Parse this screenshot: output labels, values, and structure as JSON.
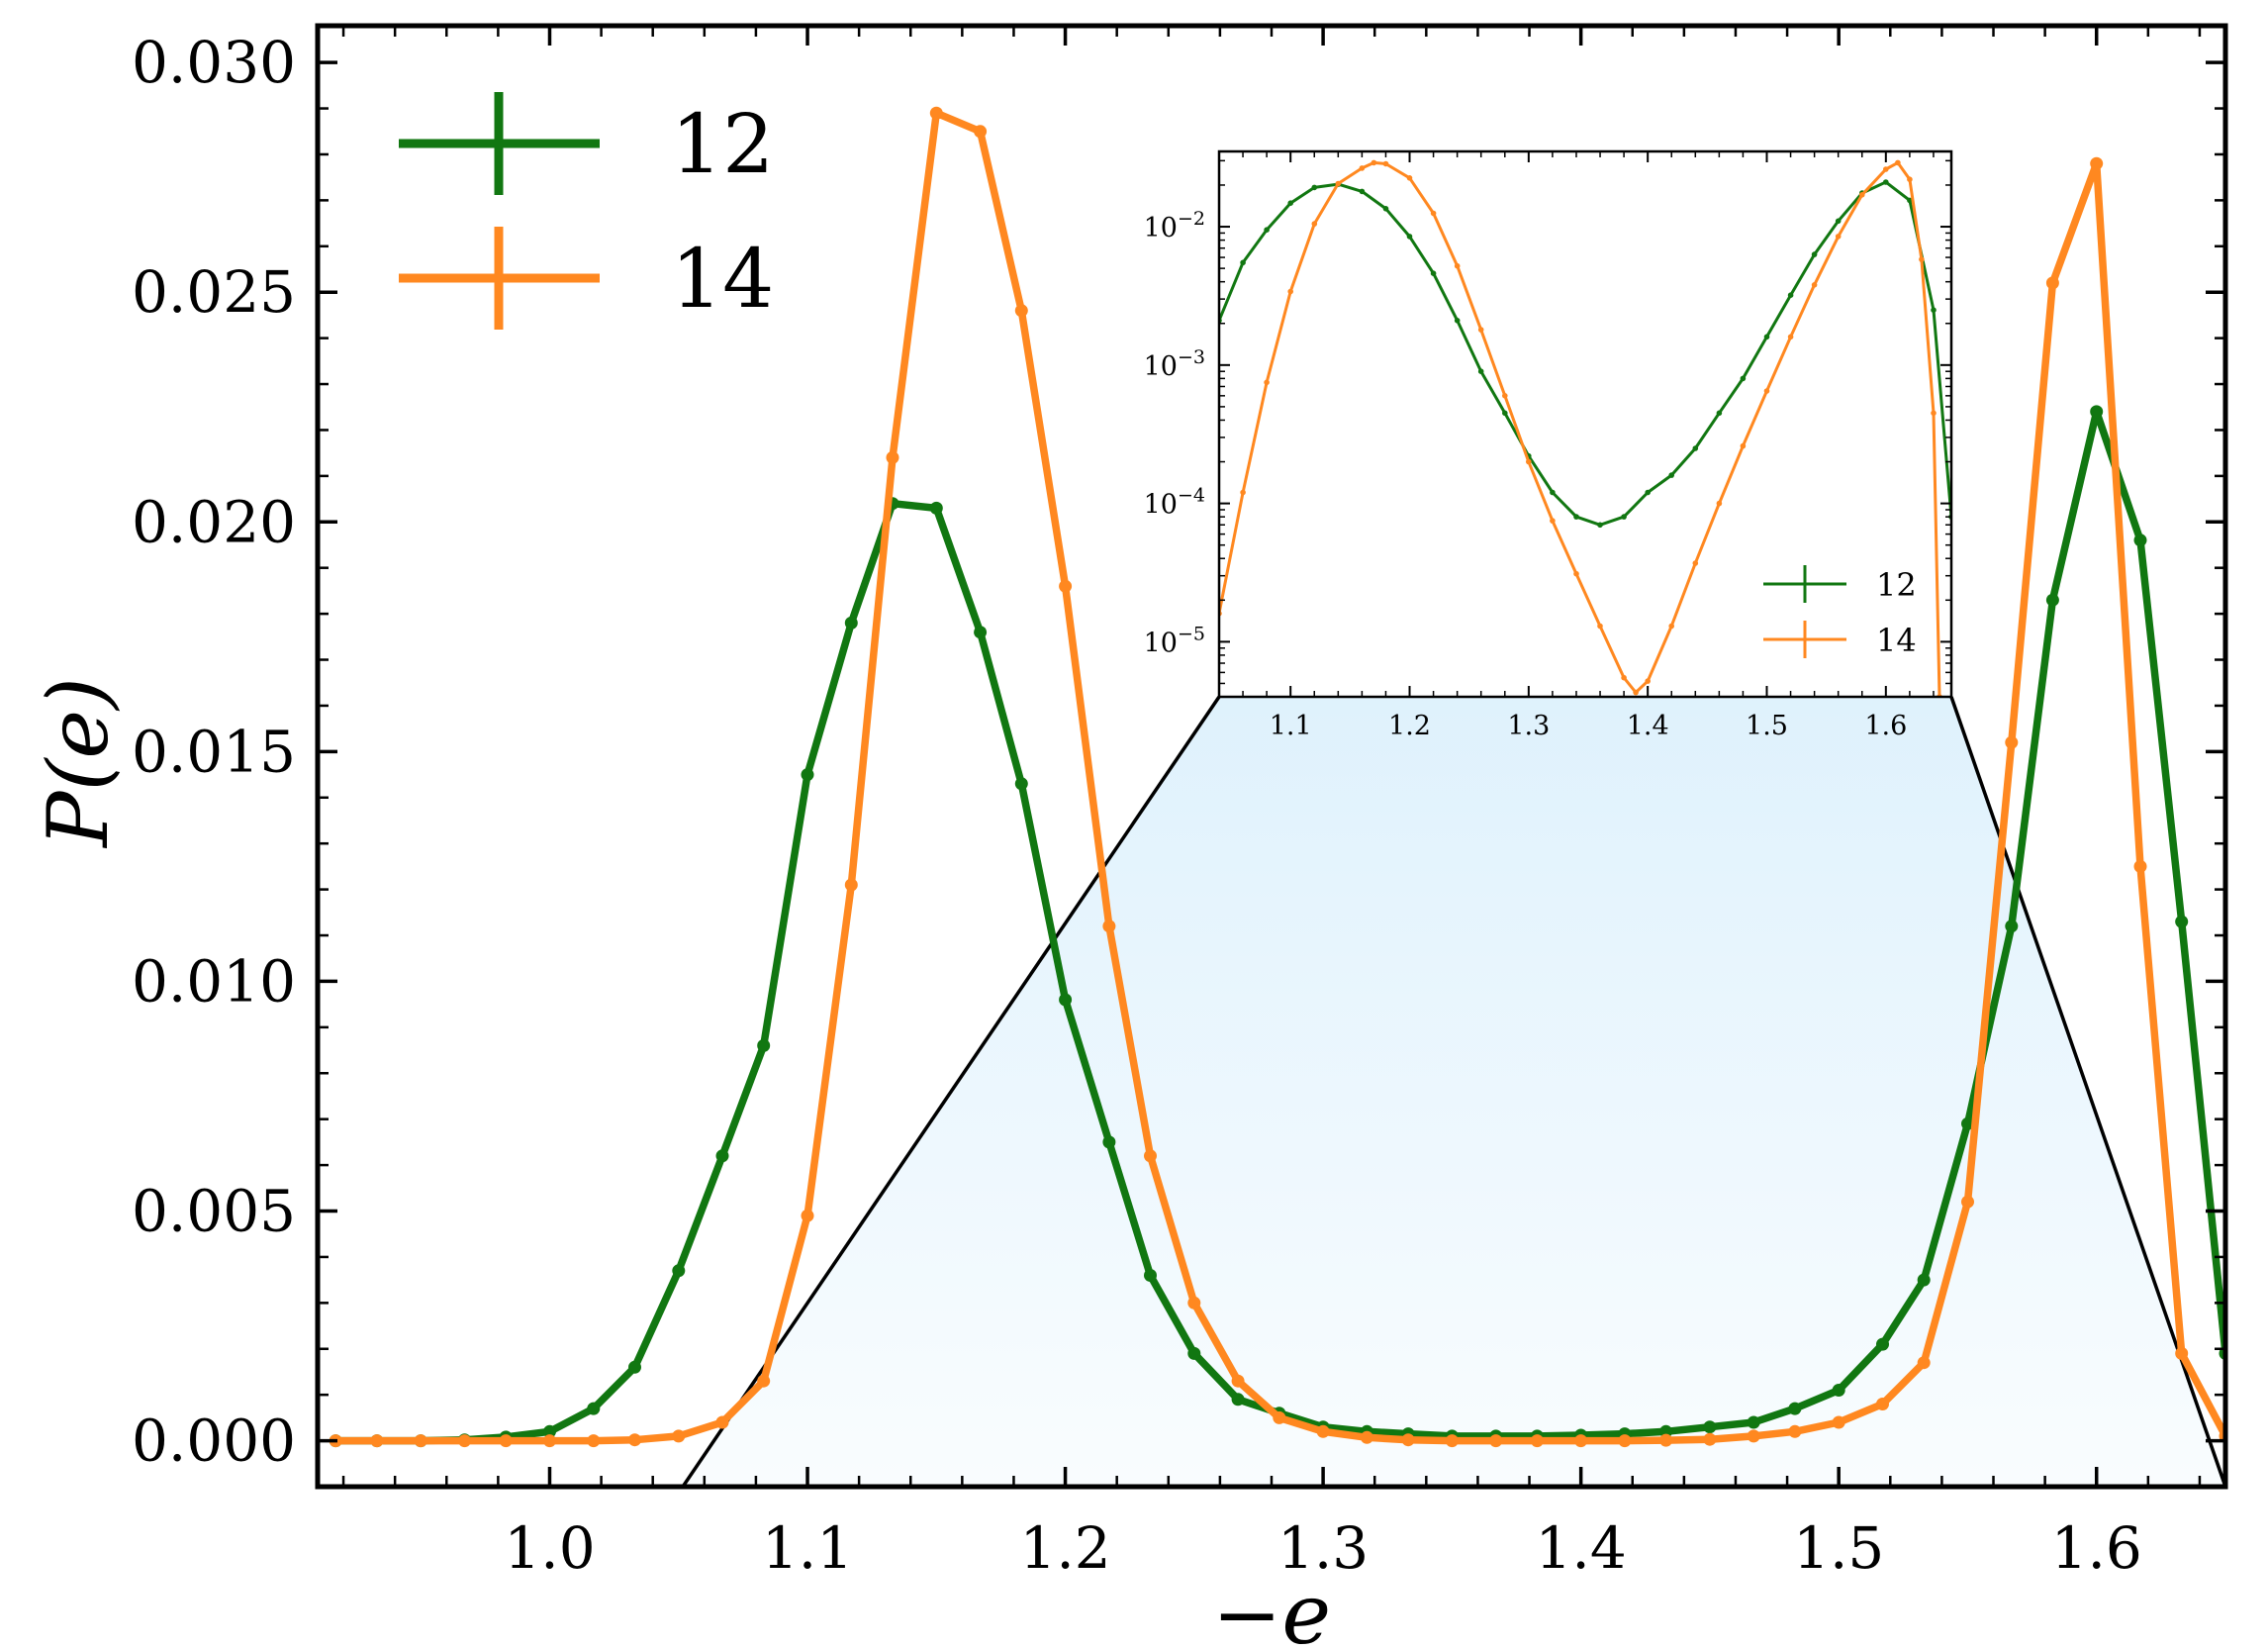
{
  "chart_data": {
    "type": "line",
    "xlabel": "−e",
    "ylabel": "P(e)",
    "xlim": [
      0.91,
      1.65
    ],
    "ylim": [
      -0.001,
      0.0308
    ],
    "x_ticks": [
      1.0,
      1.1,
      1.2,
      1.3,
      1.4,
      1.5,
      1.6
    ],
    "x_tick_labels": [
      "1.0",
      "1.1",
      "1.2",
      "1.3",
      "1.4",
      "1.5",
      "1.6"
    ],
    "y_ticks": [
      0.0,
      0.005,
      0.01,
      0.015,
      0.02,
      0.025,
      0.03
    ],
    "y_tick_labels": [
      "0.000",
      "0.005",
      "0.010",
      "0.015",
      "0.020",
      "0.025",
      "0.030"
    ],
    "legend_position": "top-left",
    "grid": false,
    "colors": {
      "12": "#117711",
      "14": "#ff8820",
      "shade": "#dcf0fb"
    },
    "series": [
      {
        "name": "12",
        "color": "#117711",
        "x": [
          0.917,
          0.933,
          0.95,
          0.967,
          0.983,
          1.0,
          1.017,
          1.033,
          1.05,
          1.067,
          1.083,
          1.1,
          1.117,
          1.133,
          1.15,
          1.167,
          1.183,
          1.2,
          1.217,
          1.233,
          1.25,
          1.267,
          1.283,
          1.3,
          1.317,
          1.333,
          1.35,
          1.367,
          1.383,
          1.4,
          1.417,
          1.433,
          1.45,
          1.467,
          1.483,
          1.5,
          1.517,
          1.533,
          1.55,
          1.567,
          1.583,
          1.6,
          1.617,
          1.633,
          1.65
        ],
        "y": [
          0.0,
          0.0,
          0.0,
          2e-05,
          8e-05,
          0.0002,
          0.0007,
          0.0016,
          0.0037,
          0.0062,
          0.0086,
          0.0145,
          0.0178,
          0.0204,
          0.0203,
          0.0176,
          0.0143,
          0.0096,
          0.0065,
          0.0036,
          0.0019,
          0.0009,
          0.0006,
          0.0003,
          0.0002,
          0.00015,
          0.0001,
          0.0001,
          0.0001,
          0.00012,
          0.00015,
          0.0002,
          0.0003,
          0.0004,
          0.0007,
          0.0011,
          0.0021,
          0.0035,
          0.0069,
          0.0112,
          0.0183,
          0.0224,
          0.0196,
          0.0113,
          0.0019
        ]
      },
      {
        "name": "14",
        "color": "#ff8820",
        "x": [
          0.917,
          0.933,
          0.95,
          0.967,
          0.983,
          1.0,
          1.017,
          1.033,
          1.05,
          1.067,
          1.083,
          1.1,
          1.117,
          1.133,
          1.15,
          1.167,
          1.183,
          1.2,
          1.217,
          1.233,
          1.25,
          1.267,
          1.283,
          1.3,
          1.317,
          1.333,
          1.35,
          1.367,
          1.383,
          1.4,
          1.417,
          1.433,
          1.45,
          1.467,
          1.483,
          1.5,
          1.517,
          1.533,
          1.55,
          1.567,
          1.583,
          1.6,
          1.617,
          1.633,
          1.65
        ],
        "y": [
          0.0,
          0.0,
          0.0,
          0.0,
          0.0,
          0.0,
          0.0,
          2e-05,
          0.0001,
          0.0004,
          0.0013,
          0.0049,
          0.0121,
          0.0214,
          0.0289,
          0.0285,
          0.0246,
          0.0186,
          0.0112,
          0.0062,
          0.003,
          0.0013,
          0.0005,
          0.0002,
          7e-05,
          2e-05,
          0.0,
          0.0,
          0.0,
          0.0,
          0.0,
          1e-05,
          3e-05,
          0.0001,
          0.0002,
          0.0004,
          0.0008,
          0.0017,
          0.0052,
          0.0152,
          0.0252,
          0.0278,
          0.0125,
          0.0019,
          0.0001
        ]
      }
    ],
    "legend": [
      {
        "label": "12",
        "color": "#117711"
      },
      {
        "label": "14",
        "color": "#ff8820"
      }
    ],
    "inset": {
      "type": "line",
      "yscale": "log",
      "xlim": [
        1.04,
        1.655
      ],
      "ylim": [
        4e-06,
        0.035
      ],
      "x_ticks": [
        1.1,
        1.2,
        1.3,
        1.4,
        1.5,
        1.6
      ],
      "x_tick_labels": [
        "1.1",
        "1.2",
        "1.3",
        "1.4",
        "1.5",
        "1.6"
      ],
      "y_ticks": [
        1e-05,
        0.0001,
        0.001,
        0.01
      ],
      "y_tick_labels": [
        {
          "base": "10",
          "exp": "−5"
        },
        {
          "base": "10",
          "exp": "−4"
        },
        {
          "base": "10",
          "exp": "−3"
        },
        {
          "base": "10",
          "exp": "−2"
        }
      ],
      "legend_position": "lower-right",
      "legend": [
        {
          "label": "12",
          "color": "#117711"
        },
        {
          "label": "14",
          "color": "#ff8820"
        }
      ],
      "series": [
        {
          "name": "12",
          "color": "#117711",
          "x": [
            1.04,
            1.06,
            1.08,
            1.1,
            1.12,
            1.14,
            1.16,
            1.18,
            1.2,
            1.22,
            1.24,
            1.26,
            1.28,
            1.3,
            1.32,
            1.34,
            1.36,
            1.38,
            1.4,
            1.42,
            1.44,
            1.46,
            1.48,
            1.5,
            1.52,
            1.54,
            1.56,
            1.58,
            1.6,
            1.62,
            1.64,
            1.655
          ],
          "y": [
            0.0021,
            0.0055,
            0.0095,
            0.0148,
            0.0192,
            0.0203,
            0.018,
            0.0135,
            0.0085,
            0.0046,
            0.0021,
            0.0009,
            0.00045,
            0.00022,
            0.00012,
            8e-05,
            7e-05,
            8e-05,
            0.00012,
            0.00016,
            0.00025,
            0.00045,
            0.0008,
            0.0016,
            0.0032,
            0.0063,
            0.011,
            0.0175,
            0.021,
            0.0155,
            0.0025,
            8e-05
          ]
        },
        {
          "name": "14",
          "color": "#ff8820",
          "x": [
            1.04,
            1.06,
            1.08,
            1.1,
            1.12,
            1.14,
            1.16,
            1.17,
            1.18,
            1.2,
            1.22,
            1.24,
            1.26,
            1.28,
            1.3,
            1.32,
            1.34,
            1.36,
            1.38,
            1.39,
            1.4,
            1.42,
            1.44,
            1.46,
            1.48,
            1.5,
            1.52,
            1.54,
            1.56,
            1.58,
            1.6,
            1.61,
            1.62,
            1.63,
            1.64,
            1.645
          ],
          "y": [
            1.6e-05,
            0.00012,
            0.00075,
            0.0034,
            0.0105,
            0.0205,
            0.0265,
            0.029,
            0.0285,
            0.0225,
            0.0125,
            0.0052,
            0.0018,
            0.0006,
            0.0002,
            7.5e-05,
            3.1e-05,
            1.3e-05,
            5.5e-06,
            4.3e-06,
            5.2e-06,
            1.3e-05,
            3.7e-05,
            0.0001,
            0.00026,
            0.00065,
            0.0016,
            0.0038,
            0.0085,
            0.017,
            0.026,
            0.029,
            0.022,
            0.0058,
            0.00045,
            4e-06
          ]
        }
      ]
    }
  }
}
